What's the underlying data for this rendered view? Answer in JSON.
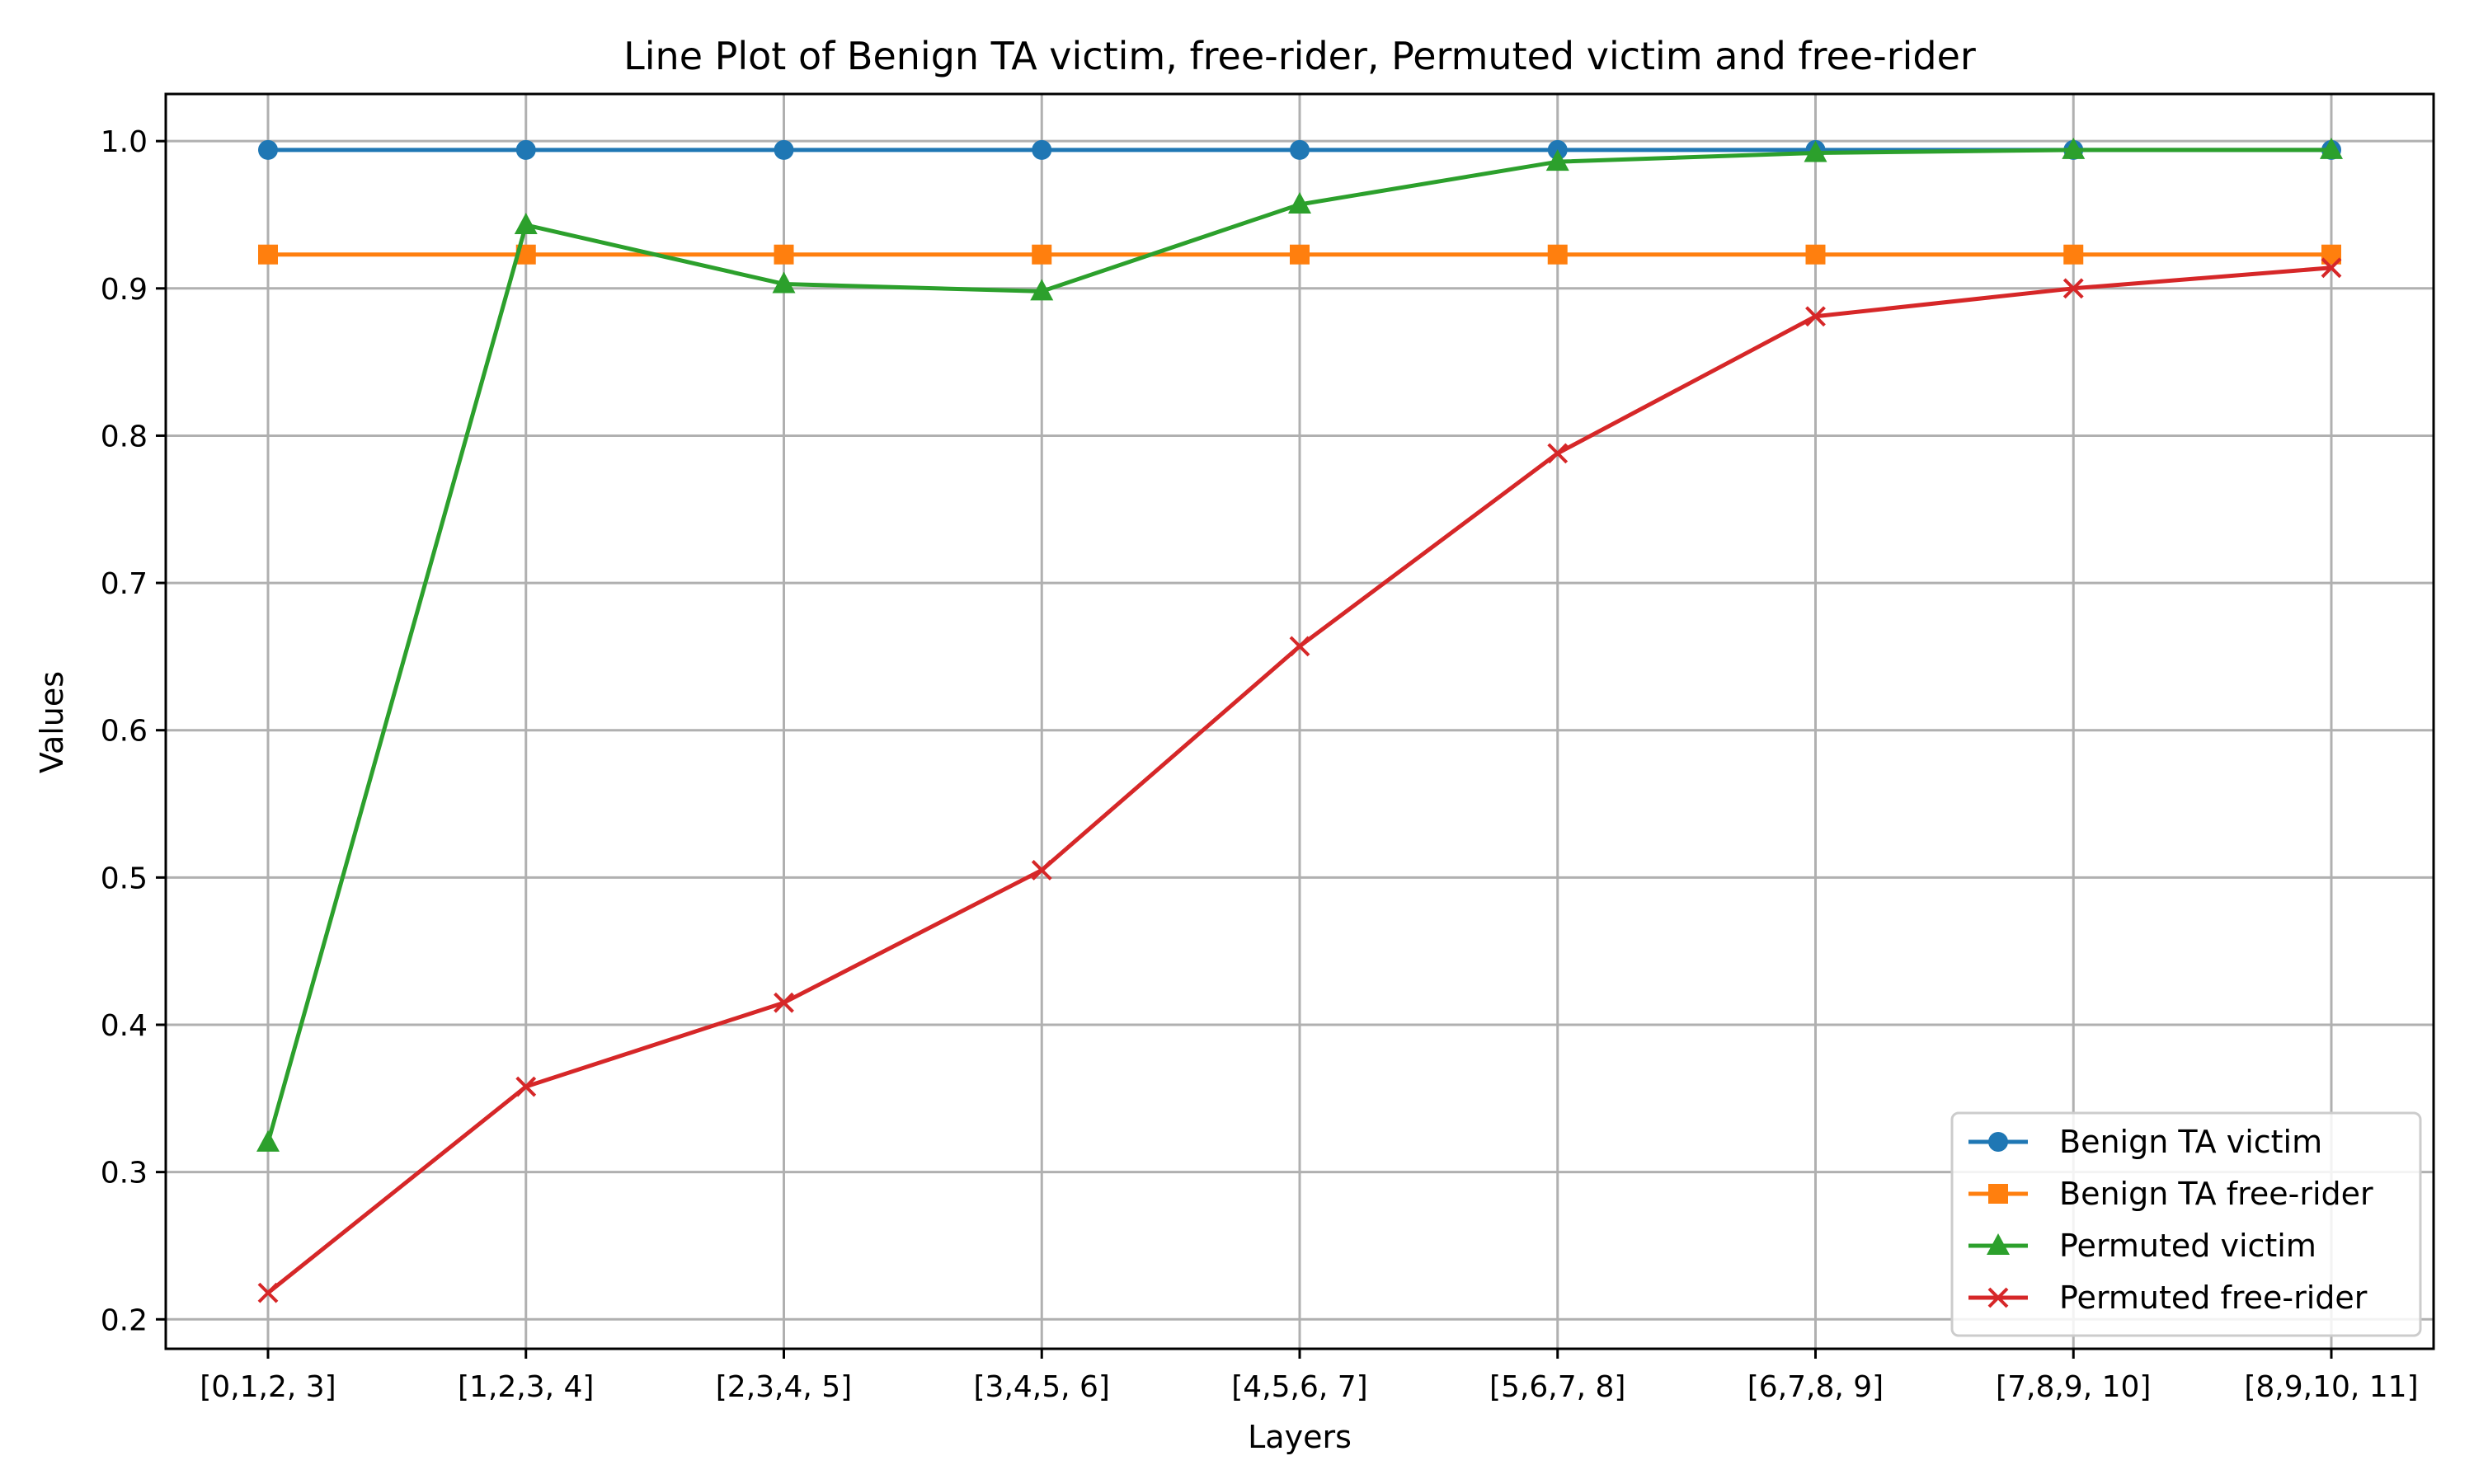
{
  "chart_data": {
    "type": "line",
    "title": "Line Plot of Benign TA victim, free-rider, Permuted victim and free-rider",
    "xlabel": "Layers",
    "ylabel": "Values",
    "categories": [
      "[0,1,2, 3]",
      "[1,2,3, 4]",
      "[2,3,4, 5]",
      "[3,4,5, 6]",
      "[4,5,6, 7]",
      "[5,6,7, 8]",
      "[6,7,8, 9]",
      "[7,8,9, 10]",
      "[8,9,10, 11]"
    ],
    "ylim": [
      0.18,
      1.032
    ],
    "yticks": [
      "0.2",
      "0.3",
      "0.4",
      "0.5",
      "0.6",
      "0.7",
      "0.8",
      "0.9",
      "1.0"
    ],
    "grid": true,
    "legend_position": "lower-right",
    "series": [
      {
        "name": "Benign TA victim",
        "color": "#1f77b4",
        "marker": "circle",
        "values": [
          0.994,
          0.994,
          0.994,
          0.994,
          0.994,
          0.994,
          0.994,
          0.994,
          0.994
        ]
      },
      {
        "name": "Benign TA free-rider",
        "color": "#ff7f0e",
        "marker": "square",
        "values": [
          0.923,
          0.923,
          0.923,
          0.923,
          0.923,
          0.923,
          0.923,
          0.923,
          0.923
        ]
      },
      {
        "name": "Permuted victim",
        "color": "#2ca02c",
        "marker": "triangle",
        "values": [
          0.32,
          0.943,
          0.903,
          0.898,
          0.957,
          0.986,
          0.992,
          0.994,
          0.994
        ]
      },
      {
        "name": "Permuted free-rider",
        "color": "#d62728",
        "marker": "x",
        "values": [
          0.218,
          0.358,
          0.415,
          0.505,
          0.657,
          0.788,
          0.881,
          0.9,
          0.914
        ]
      }
    ]
  }
}
